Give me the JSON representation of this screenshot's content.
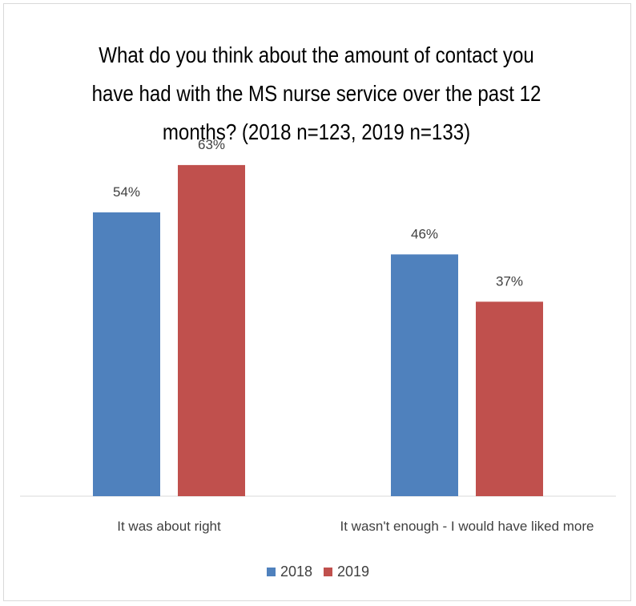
{
  "chart_data": {
    "type": "bar",
    "title": "What do you think about the amount of contact you\nhave had with the MS nurse service over the past 12\nmonths? (2018 n=123, 2019 n=133)",
    "categories": [
      "It was about right",
      "It wasn't enough - I would have liked more"
    ],
    "series": [
      {
        "name": "2018",
        "values": [
          54,
          46
        ],
        "labels": [
          "54%",
          "46%"
        ],
        "color": "#4f81bd"
      },
      {
        "name": "2019",
        "values": [
          63,
          37
        ],
        "labels": [
          "63%",
          "37%"
        ],
        "color": "#c0504d"
      }
    ],
    "ylim": [
      0,
      70
    ],
    "grid": false,
    "legend": "bottom"
  }
}
